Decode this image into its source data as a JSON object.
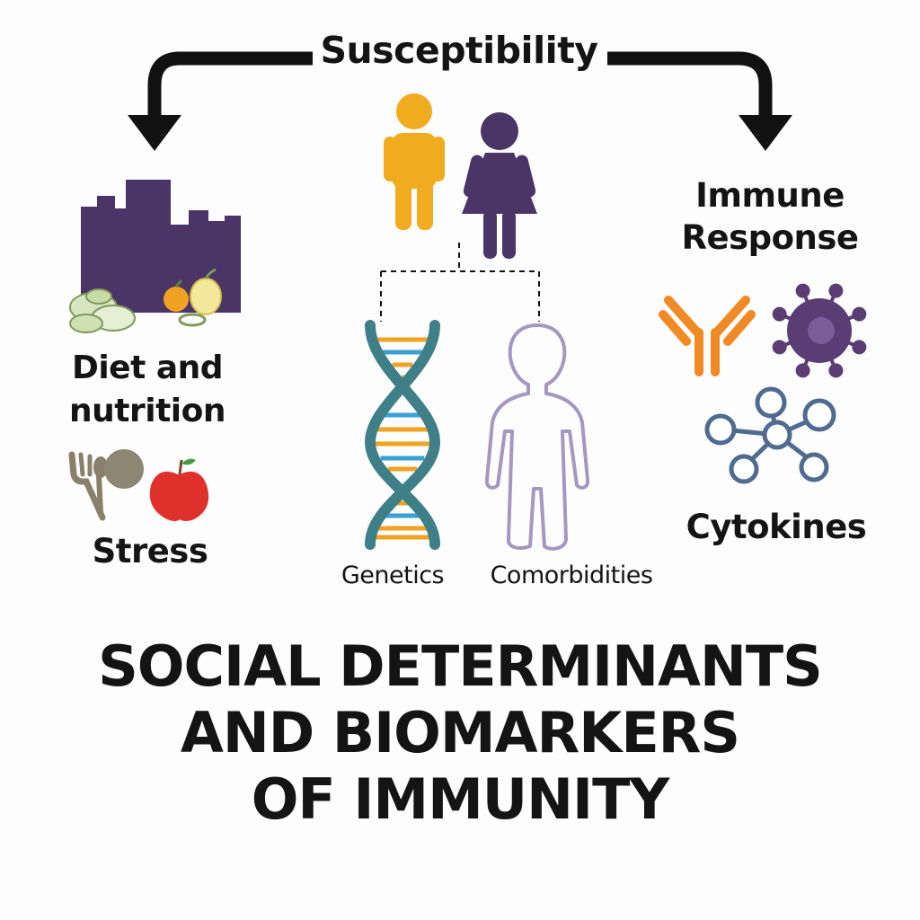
{
  "title_lines": [
    "SOCIAL DETERMINANTS",
    "AND BIOMARKERS",
    "OF IMMUNITY"
  ],
  "top_label": "Susceptibility",
  "right_heading_lines": [
    "Immune",
    "Response"
  ],
  "left_labels": {
    "diet_lines": [
      "Diet and",
      "nutrition"
    ],
    "stress": "Stress"
  },
  "center_labels": {
    "genetics": "Genetics",
    "comorbidities": "Comorbidities"
  },
  "right_labels": {
    "cytokines": "Cytokines"
  },
  "icons": [
    "arrow-left-down-icon",
    "arrow-right-down-icon",
    "man-figure-icon",
    "woman-figure-icon",
    "city-skyline-icon",
    "vegetables-icon",
    "fruit-icon",
    "fork-spoon-icon",
    "plate-icon",
    "apple-icon",
    "dna-helix-icon",
    "body-outline-icon",
    "antibody-icon",
    "virus-cell-icon",
    "cytokine-network-icon"
  ],
  "colors": {
    "text": "#141414",
    "purple": "#4a3566",
    "orange_figure": "#f0ab1f",
    "dna_teal": "#3f7f88",
    "dna_rung_orange": "#f0a323",
    "dna_rung_blue": "#3ba0d4",
    "comorbidity_outline": "#a597bf",
    "antibody_orange": "#f08a24",
    "virus_purple": "#5a3d74",
    "cytokine_blue": "#4f6b8f",
    "apple_red": "#e0302a"
  }
}
